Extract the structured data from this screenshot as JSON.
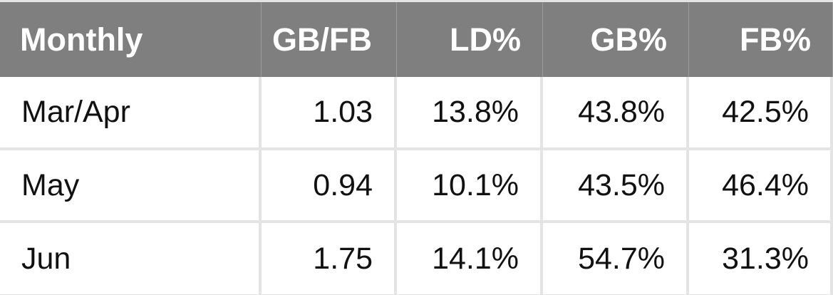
{
  "table": {
    "header": [
      "Monthly",
      "GB/FB",
      "LD%",
      "GB%",
      "FB%"
    ],
    "rows": [
      [
        "Mar/Apr",
        "1.03",
        "13.8%",
        "43.8%",
        "42.5%"
      ],
      [
        "May",
        "0.94",
        "10.1%",
        "43.5%",
        "46.4%"
      ],
      [
        "Jun",
        "1.75",
        "14.1%",
        "54.7%",
        "31.3%"
      ]
    ]
  }
}
